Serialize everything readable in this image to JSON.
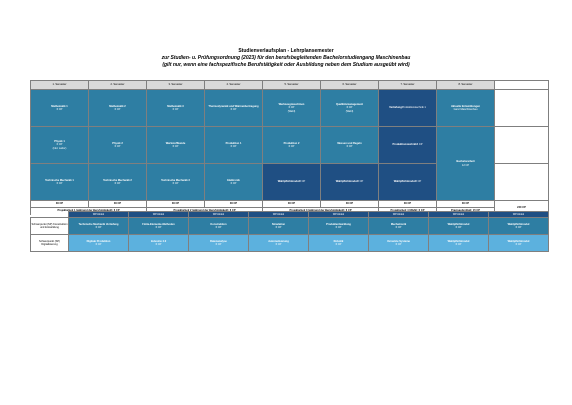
{
  "header": {
    "title": "Studienverlaufsplan - Lehrplansemester",
    "subtitle": "zur Studien- u. Prüfungsordnung (2023) für den berufsbegleitenden Bachelorstudiengang Maschinenbau",
    "note": "(gilt nur, wenn eine fachspezifische Berufstätigkeit oder Ausbildung neben dem Studium ausgeübt wird)"
  },
  "semesters": [
    "1. Semester",
    "2. Semester",
    "3. Semester",
    "4. Semester",
    "5. Semester",
    "6. Semester",
    "7. Semester",
    "8. Semester"
  ],
  "row1": [
    {
      "name": "Mathematik 1",
      "cp": "6 CP"
    },
    {
      "name": "Mathematik 2",
      "cp": "6 CP"
    },
    {
      "name": "Mathematik 3",
      "cp": "6 CP"
    },
    {
      "name": "Thermodynamik und Wärmeübertragung",
      "cp": "6 CP"
    },
    {
      "name": "Werkzeugmaschinen",
      "cp": "6 CP",
      "extra": "(Wahl)"
    },
    {
      "name": "Qualitätsmanagement",
      "cp": "6 CP",
      "extra": "(Wahl)"
    },
    {
      "name": "Vertiefung",
      "cp": "Produktionstechnik 1"
    },
    {
      "name": "Aktuelle Entwicklungen",
      "cp": "Ganz Maschinenbau"
    }
  ],
  "row2": [
    {
      "name": "Physik 1",
      "cp": "6 CP",
      "extra": "(inkl. Labor)"
    },
    {
      "name": "Physik 2",
      "cp": "6 CP"
    },
    {
      "name": "Werkstoffkunde",
      "cp": "6 CP"
    },
    {
      "name": "Produktion 1",
      "cp": "6 CP"
    },
    {
      "name": "Produktion 2",
      "cp": "6 CP"
    },
    {
      "name": "Messen und Regeln",
      "cp": "6 CP"
    },
    {
      "name": "Produktionstechnik",
      "cp": "6 CP"
    },
    {
      "name": "Bachelorarbeit",
      "cp": "12 CP"
    }
  ],
  "row3": [
    {
      "name": "Technische Mechanik 1",
      "cp": "6 CP"
    },
    {
      "name": "Technische Mechanik 2",
      "cp": "6 CP"
    },
    {
      "name": "Technische Mechanik 3",
      "cp": "6 CP"
    },
    {
      "name": "Elektronik",
      "cp": "6 CP"
    },
    {
      "name": "Wahlpflichtmodul",
      "cp": "6 CP"
    },
    {
      "name": "Wahlpflichtmodul",
      "cp": "6 CP"
    },
    {
      "name": "Wahlpflichtmodul",
      "cp": "6 CP"
    }
  ],
  "row4": [
    {
      "name": "Grundlagen der Konstruktion",
      "cp": "6 CP"
    },
    {
      "name": "Konstruktionslehre",
      "cp": "6 CP"
    },
    {
      "name": "CAD",
      "cp": "6 CP"
    },
    {
      "name": "Informatik",
      "cp": "6 CP"
    },
    {
      "name": "Maschinenelemente",
      "cp": "6 CP"
    },
    {
      "name": "Thermische Maschinen",
      "cp": "6 CP"
    },
    {
      "name": "Energietechnik",
      "cp": "6 CP"
    }
  ],
  "cp_totals": [
    "30 CP",
    "30 CP",
    "30 CP",
    "30 CP",
    "30 CP",
    "30 CP",
    "30 CP",
    "30 CP"
  ],
  "practice": [
    "Projektarbeit 1 (während der Berufstätigkeit): 6 CP",
    "Projektarbeit 2 (während der Berufstätigkeit): 6 CP",
    "Projektarbeit 3 (während der Berufstätigkeit): 6 CP",
    "Projektarbeit 4 (Wahl): 6 CP",
    "Praxisaufenthalt: 15 CP"
  ],
  "total": "240 CP",
  "lower": {
    "headers": [
      "WP-Modul",
      "WP-Modul",
      "WP-Modul",
      "WP-Modul",
      "WP-Modul",
      "WP-Modul",
      "WP-Modul",
      "WP-Modul"
    ],
    "label1": "Schwerpunkt (SP) Konstruktion und Entwicklung",
    "label2": "Schwerpunkt (SP) Digitalisierung",
    "row1": [
      {
        "name": "Technische Mechanik Vertiefung",
        "cp": "6 CP"
      },
      {
        "name": "Finite-Elemente-Methoden",
        "cp": "6 CP"
      },
      {
        "name": "Konstruktion",
        "cp": "6 CP"
      },
      {
        "name": "Simulation",
        "cp": "6 CP"
      },
      {
        "name": "Produktentwicklung",
        "cp": "6 CP"
      },
      {
        "name": "Mechatronik",
        "cp": "6 CP"
      },
      {
        "name": "Wahlpflichtmodul",
        "cp": "6 CP"
      },
      {
        "name": "Wahlpflichtmodul",
        "cp": "6 CP"
      }
    ],
    "row2": [
      {
        "name": "Digitale Produktion",
        "cp": "6 CP"
      },
      {
        "name": "Industrie 4.0",
        "cp": "6 CP"
      },
      {
        "name": "Datenanalyse",
        "cp": "6 CP"
      },
      {
        "name": "Automatisierung",
        "cp": "6 CP"
      },
      {
        "name": "Robotik",
        "cp": "6 CP"
      },
      {
        "name": "Vernetzte Systeme",
        "cp": "6 CP"
      },
      {
        "name": "Wahlpflichtmodul",
        "cp": "6 CP"
      },
      {
        "name": "Wahlpflichtmodul",
        "cp": "6 CP"
      }
    ]
  }
}
